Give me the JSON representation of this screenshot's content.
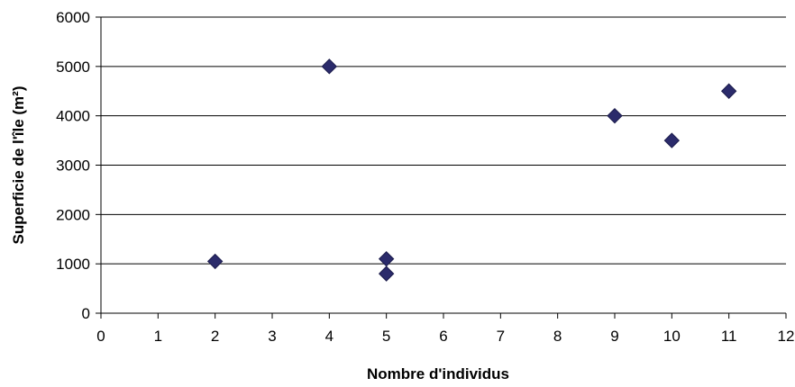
{
  "chart_data": {
    "type": "scatter",
    "title": "",
    "xlabel": "Nombre d'individus",
    "ylabel": "Superficie de l'île (m²)",
    "xlim": [
      0,
      12
    ],
    "ylim": [
      0,
      6000
    ],
    "xticks": [
      "0",
      "1",
      "2",
      "3",
      "4",
      "5",
      "6",
      "7",
      "8",
      "9",
      "10",
      "11",
      "12"
    ],
    "yticks": [
      "0",
      "1000",
      "2000",
      "3000",
      "4000",
      "5000",
      "6000"
    ],
    "grid": "horizontal",
    "legend": "none",
    "marker": "diamond",
    "marker_color": "#2b2b6b",
    "points": [
      {
        "x": 2,
        "y": 1050
      },
      {
        "x": 4,
        "y": 5000
      },
      {
        "x": 5,
        "y": 1100
      },
      {
        "x": 5,
        "y": 800
      },
      {
        "x": 9,
        "y": 4000
      },
      {
        "x": 10,
        "y": 3500
      },
      {
        "x": 11,
        "y": 4500
      }
    ]
  }
}
